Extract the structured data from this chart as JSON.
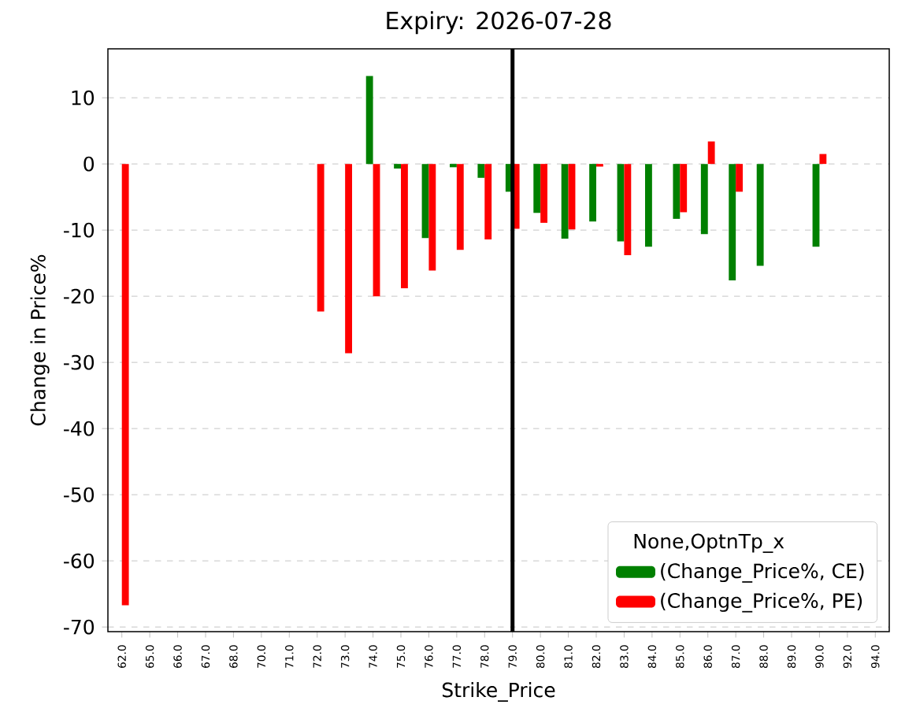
{
  "chart_data": {
    "type": "bar",
    "title": "Expiry: 2026-07-28",
    "xlabel": "Strike_Price",
    "ylabel": "Change in Price%",
    "legend_title": "None,OptnTp_x",
    "categories": [
      "62.0",
      "65.0",
      "66.0",
      "67.0",
      "68.0",
      "70.0",
      "71.0",
      "72.0",
      "73.0",
      "74.0",
      "75.0",
      "76.0",
      "77.0",
      "78.0",
      "79.0",
      "80.0",
      "81.0",
      "82.0",
      "83.0",
      "84.0",
      "85.0",
      "86.0",
      "87.0",
      "88.0",
      "89.0",
      "90.0",
      "92.0",
      "94.0"
    ],
    "series": [
      {
        "name": "(Change_Price%, CE)",
        "color": "#008000",
        "values": [
          null,
          null,
          null,
          null,
          null,
          null,
          null,
          null,
          null,
          13.3,
          -0.7,
          -11.2,
          -0.5,
          -2.1,
          -4.2,
          -7.4,
          -11.3,
          -8.7,
          -11.7,
          -12.5,
          -8.3,
          -10.6,
          -17.6,
          -15.4,
          null,
          -12.5,
          null,
          null
        ]
      },
      {
        "name": "(Change_Price%, PE)",
        "color": "#ff0000",
        "values": [
          -66.7,
          null,
          null,
          null,
          null,
          null,
          null,
          -22.3,
          -28.6,
          -20.0,
          -18.8,
          -16.1,
          -13.0,
          -11.4,
          -9.8,
          -8.9,
          -9.9,
          -0.4,
          -13.8,
          null,
          -7.3,
          3.4,
          -4.2,
          null,
          null,
          1.5,
          null,
          null
        ]
      }
    ],
    "ylim": [
      -70.7,
      17.4
    ],
    "yticks": [
      -70,
      -60,
      -50,
      -40,
      -30,
      -20,
      -10,
      0,
      10
    ],
    "grid": "y",
    "legend": "bottom right",
    "ref_lines": [
      {
        "axis": "x",
        "value": "79.0",
        "color": "#000000"
      }
    ]
  }
}
